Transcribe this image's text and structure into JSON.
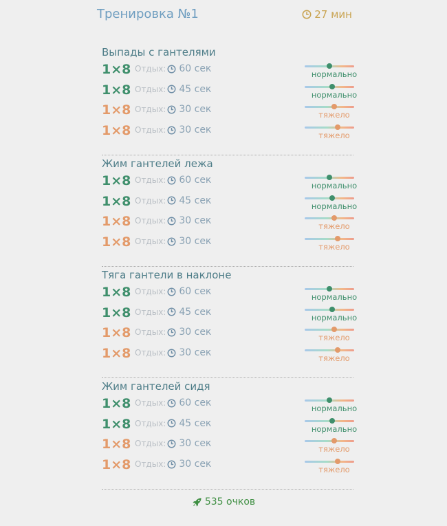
{
  "header": {
    "title": "Тренировка №1",
    "duration": "27 мин",
    "duration_icon": "clock-icon"
  },
  "colors": {
    "title": "#6f9ec0",
    "duration": "#c9a452",
    "normal": "#3f8f6c",
    "hard": "#e39a6a",
    "exercise_name": "#4e7d88",
    "points": "#3f8f43"
  },
  "exercises": [
    {
      "name": "Выпады с гантелями",
      "sets": [
        {
          "reps": "1×8",
          "rest_label": "Отдых:",
          "rest_time": "60 сек",
          "intensity": "нормально",
          "level": 0.5
        },
        {
          "reps": "1×8",
          "rest_label": "Отдых:",
          "rest_time": "45 сек",
          "intensity": "нормально",
          "level": 0.55
        },
        {
          "reps": "1×8",
          "rest_label": "Отдых:",
          "rest_time": "30 сек",
          "intensity": "тяжело",
          "level": 0.6
        },
        {
          "reps": "1×8",
          "rest_label": "Отдых:",
          "rest_time": "30 сек",
          "intensity": "тяжело",
          "level": 0.67
        }
      ]
    },
    {
      "name": "Жим гантелей лежа",
      "sets": [
        {
          "reps": "1×8",
          "rest_label": "Отдых:",
          "rest_time": "60 сек",
          "intensity": "нормально",
          "level": 0.5
        },
        {
          "reps": "1×8",
          "rest_label": "Отдых:",
          "rest_time": "45 сек",
          "intensity": "нормально",
          "level": 0.55
        },
        {
          "reps": "1×8",
          "rest_label": "Отдых:",
          "rest_time": "30 сек",
          "intensity": "тяжело",
          "level": 0.6
        },
        {
          "reps": "1×8",
          "rest_label": "Отдых:",
          "rest_time": "30 сек",
          "intensity": "тяжело",
          "level": 0.67
        }
      ]
    },
    {
      "name": "Тяга гантели в наклоне",
      "sets": [
        {
          "reps": "1×8",
          "rest_label": "Отдых:",
          "rest_time": "60 сек",
          "intensity": "нормально",
          "level": 0.5
        },
        {
          "reps": "1×8",
          "rest_label": "Отдых:",
          "rest_time": "45 сек",
          "intensity": "нормально",
          "level": 0.55
        },
        {
          "reps": "1×8",
          "rest_label": "Отдых:",
          "rest_time": "30 сек",
          "intensity": "тяжело",
          "level": 0.6
        },
        {
          "reps": "1×8",
          "rest_label": "Отдых:",
          "rest_time": "30 сек",
          "intensity": "тяжело",
          "level": 0.67
        }
      ]
    },
    {
      "name": "Жим гантелей сидя",
      "sets": [
        {
          "reps": "1×8",
          "rest_label": "Отдых:",
          "rest_time": "60 сек",
          "intensity": "нормально",
          "level": 0.5
        },
        {
          "reps": "1×8",
          "rest_label": "Отдых:",
          "rest_time": "45 сек",
          "intensity": "нормально",
          "level": 0.55
        },
        {
          "reps": "1×8",
          "rest_label": "Отдых:",
          "rest_time": "30 сек",
          "intensity": "тяжело",
          "level": 0.6
        },
        {
          "reps": "1×8",
          "rest_label": "Отдых:",
          "rest_time": "30 сек",
          "intensity": "тяжело",
          "level": 0.67
        }
      ]
    }
  ],
  "footer": {
    "points": "535 очков",
    "icon": "rocket-icon"
  }
}
